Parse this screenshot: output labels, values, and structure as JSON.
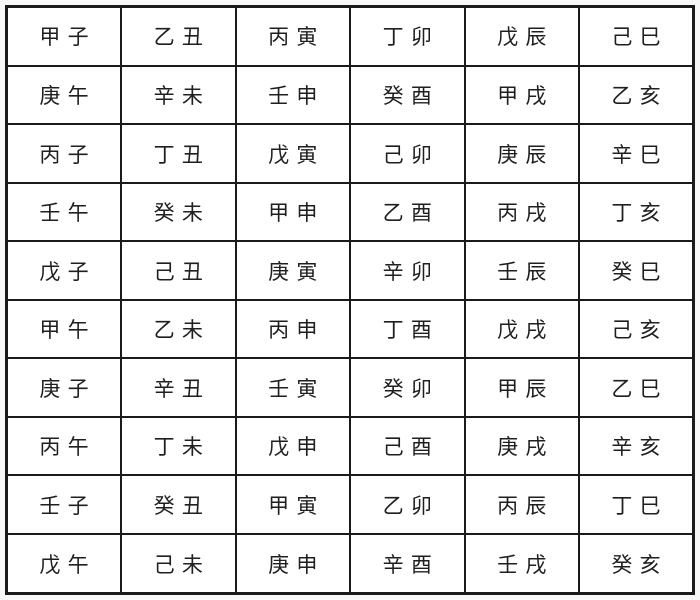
{
  "title": "sexagenary-cycle-table",
  "colors": {
    "border": "#1a1a1a",
    "text": "#1f1f1f",
    "cell_background": "#ffffff",
    "page_background": "#f8f8f8"
  },
  "table": {
    "rows": [
      [
        "甲子",
        "乙丑",
        "丙寅",
        "丁卯",
        "戊辰",
        "己巳"
      ],
      [
        "庚午",
        "辛未",
        "壬申",
        "癸酉",
        "甲戌",
        "乙亥"
      ],
      [
        "丙子",
        "丁丑",
        "戊寅",
        "己卯",
        "庚辰",
        "辛巳"
      ],
      [
        "壬午",
        "癸未",
        "甲申",
        "乙酉",
        "丙戌",
        "丁亥"
      ],
      [
        "戊子",
        "己丑",
        "庚寅",
        "辛卯",
        "壬辰",
        "癸巳"
      ],
      [
        "甲午",
        "乙未",
        "丙申",
        "丁酉",
        "戊戌",
        "己亥"
      ],
      [
        "庚子",
        "辛丑",
        "壬寅",
        "癸卯",
        "甲辰",
        "乙巳"
      ],
      [
        "丙午",
        "丁未",
        "戊申",
        "己酉",
        "庚戌",
        "辛亥"
      ],
      [
        "壬子",
        "癸丑",
        "甲寅",
        "乙卯",
        "丙辰",
        "丁巳"
      ],
      [
        "戊午",
        "己未",
        "庚申",
        "辛酉",
        "壬戌",
        "癸亥"
      ]
    ]
  }
}
